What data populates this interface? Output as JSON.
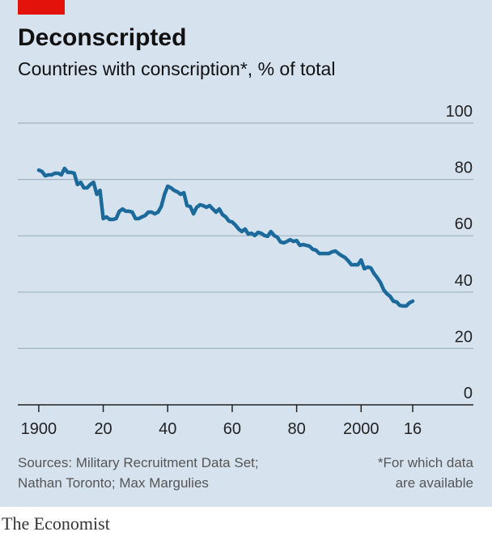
{
  "chart_data": {
    "type": "line",
    "title": "Deconscripted",
    "subtitle": "Countries with conscription*, % of total",
    "source": [
      "Sources: Military Recruitment Data Set;",
      "Nathan Toronto; Max Margulies"
    ],
    "footnote": [
      "*For which data",
      "are available"
    ],
    "brand": "The Economist",
    "xlim": [
      1894,
      2035
    ],
    "ylim": [
      0,
      100
    ],
    "xticks": [
      1900,
      {
        "value": 1920,
        "label": "20"
      },
      {
        "value": 1940,
        "label": "40"
      },
      {
        "value": 1960,
        "label": "60"
      },
      {
        "value": 1980,
        "label": "80"
      },
      2000,
      {
        "value": 2016,
        "label": "16"
      }
    ],
    "yticks": [
      0,
      20,
      40,
      60,
      80,
      100
    ],
    "grid": true,
    "x": [
      1900,
      1901,
      1902,
      1903,
      1904,
      1905,
      1906,
      1907,
      1908,
      1909,
      1910,
      1911,
      1912,
      1913,
      1914,
      1915,
      1916,
      1917,
      1918,
      1919,
      1920,
      1921,
      1922,
      1923,
      1924,
      1925,
      1926,
      1927,
      1928,
      1929,
      1930,
      1931,
      1932,
      1933,
      1934,
      1935,
      1936,
      1937,
      1938,
      1939,
      1940,
      1941,
      1942,
      1943,
      1944,
      1945,
      1946,
      1947,
      1948,
      1949,
      1950,
      1951,
      1952,
      1953,
      1954,
      1955,
      1956,
      1957,
      1958,
      1959,
      1960,
      1961,
      1962,
      1963,
      1964,
      1965,
      1966,
      1967,
      1968,
      1969,
      1970,
      1971,
      1972,
      1973,
      1974,
      1975,
      1976,
      1977,
      1978,
      1979,
      1980,
      1981,
      1982,
      1983,
      1984,
      1985,
      1986,
      1987,
      1988,
      1989,
      1990,
      1991,
      1992,
      1993,
      1994,
      1995,
      1996,
      1997,
      1998,
      1999,
      2000,
      2001,
      2002,
      2003,
      2004,
      2005,
      2006,
      2007,
      2008,
      2009,
      2010,
      2011,
      2012,
      2013,
      2014,
      2015,
      2016
    ],
    "series": [
      {
        "name": "Countries with conscription",
        "color": "#1b6a9b",
        "values": [
          83.3,
          82.8,
          81.3,
          81.6,
          81.6,
          82.2,
          82.2,
          81.6,
          83.9,
          82.5,
          82.5,
          82.2,
          78.2,
          79,
          77,
          77,
          78.2,
          79,
          74.7,
          76.1,
          66.1,
          66.7,
          65.8,
          65.8,
          66.1,
          68.7,
          69.5,
          68.7,
          68.7,
          68.4,
          66.1,
          66.1,
          66.7,
          67.2,
          68.4,
          68.4,
          67.8,
          68.4,
          70.4,
          74.7,
          77.6,
          77,
          76.1,
          75.6,
          74.7,
          75.3,
          70.7,
          70.4,
          67.8,
          70.1,
          71,
          70.7,
          70.1,
          70.7,
          69.5,
          68.4,
          69.5,
          67.5,
          66.7,
          65.2,
          64.9,
          63.8,
          62.4,
          61.5,
          62.4,
          60.6,
          60.9,
          60.1,
          61.2,
          60.9,
          60.1,
          59.8,
          61.5,
          60.1,
          59.5,
          57.8,
          57.5,
          58,
          58.6,
          58,
          58.3,
          56.6,
          56.9,
          56.6,
          56.3,
          55.2,
          54.9,
          53.7,
          53.7,
          53.7,
          53.7,
          54.3,
          54.6,
          53.7,
          52.9,
          52.3,
          51.1,
          49.7,
          49.7,
          49.7,
          51.4,
          48.3,
          48.9,
          48.6,
          46.6,
          45.1,
          43.4,
          40.8,
          39.4,
          38.5,
          36.8,
          36.5,
          35.3,
          35.1,
          35.1,
          36.2,
          36.8
        ]
      }
    ]
  }
}
